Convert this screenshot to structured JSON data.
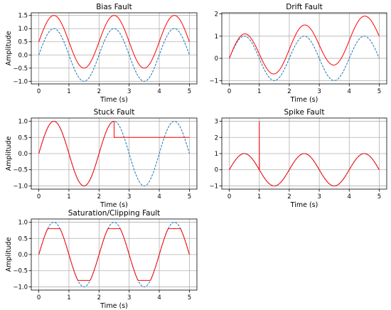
{
  "figure": {
    "background": "#ffffff",
    "clean_color": "#1f77b4",
    "fault_color": "#ff0000"
  },
  "chart_data": [
    {
      "type": "line",
      "title": "Bias Fault",
      "xlabel": "Time (s)",
      "ylabel": "Amplitude",
      "xlim": [
        -0.25,
        5.25
      ],
      "ylim": [
        -1.1,
        1.6
      ],
      "xticks": [
        0,
        1,
        2,
        3,
        4,
        5
      ],
      "xticklabels": [
        "0",
        "1",
        "2",
        "3",
        "4",
        "5"
      ],
      "yticks": [
        -1.0,
        -0.5,
        0.0,
        0.5,
        1.0,
        1.5
      ],
      "yticklabels": [
        "−1.0",
        "−0.5",
        "0.0",
        "0.5",
        "1.0",
        "1.5"
      ],
      "grid": true,
      "x": [
        0,
        0.5,
        1,
        1.5,
        2,
        2.5,
        3,
        3.5,
        4,
        4.5,
        5
      ],
      "series": [
        {
          "role": "clean",
          "style": "dashed",
          "color": "#1f77b4",
          "values": [
            0,
            1,
            0,
            -1,
            0,
            1,
            0,
            -1,
            0,
            1,
            0
          ]
        },
        {
          "role": "fault",
          "style": "solid",
          "color": "#ff0000",
          "values": [
            0.5,
            1.5,
            0.5,
            -0.5,
            0.5,
            1.5,
            0.5,
            -0.5,
            0.5,
            1.5,
            0.5
          ]
        }
      ]
    },
    {
      "type": "line",
      "title": "Drift Fault",
      "xlabel": "Time (s)",
      "ylabel": "",
      "xlim": [
        -0.25,
        5.25
      ],
      "ylim": [
        -1.15,
        2.05
      ],
      "xticks": [
        0,
        1,
        2,
        3,
        4,
        5
      ],
      "xticklabels": [
        "0",
        "1",
        "2",
        "3",
        "4",
        "5"
      ],
      "yticks": [
        -1,
        0,
        1,
        2
      ],
      "yticklabels": [
        "−1",
        "0",
        "1",
        "2"
      ],
      "grid": true,
      "x": [
        0,
        0.5,
        1,
        1.5,
        2,
        2.5,
        3,
        3.5,
        4,
        4.5,
        5
      ],
      "series": [
        {
          "role": "clean",
          "style": "dashed",
          "color": "#1f77b4",
          "values": [
            0,
            1,
            0,
            -1,
            0,
            1,
            0,
            -1,
            0,
            1,
            0
          ]
        },
        {
          "role": "fault",
          "style": "solid",
          "color": "#ff0000",
          "values": [
            0,
            1.1,
            0.2,
            -0.7,
            0.4,
            1.5,
            0.6,
            -0.3,
            0.8,
            1.9,
            1.0
          ]
        }
      ]
    },
    {
      "type": "line",
      "title": "Stuck Fault",
      "xlabel": "Time (s)",
      "ylabel": "Amplitude",
      "xlim": [
        -0.25,
        5.25
      ],
      "ylim": [
        -1.1,
        1.1
      ],
      "xticks": [
        0,
        1,
        2,
        3,
        4,
        5
      ],
      "xticklabels": [
        "0",
        "1",
        "2",
        "3",
        "4",
        "5"
      ],
      "yticks": [
        -1.0,
        -0.5,
        0.0,
        0.5,
        1.0
      ],
      "yticklabels": [
        "−1.0",
        "−0.5",
        "0.0",
        "0.5",
        "1.0"
      ],
      "grid": true,
      "x": [
        0,
        0.5,
        1,
        1.5,
        2,
        2.5,
        3,
        3.5,
        4,
        4.5,
        5
      ],
      "series": [
        {
          "role": "clean",
          "style": "dashed",
          "color": "#1f77b4",
          "values": [
            0,
            1,
            0,
            -1,
            0,
            1,
            0,
            -1,
            0,
            1,
            0
          ]
        },
        {
          "role": "fault",
          "style": "solid",
          "color": "#ff0000",
          "values": [
            0,
            1,
            0,
            -1,
            0,
            1,
            0.5,
            0.5,
            0.5,
            0.5,
            0.5
          ],
          "stuck_at": 0.5,
          "fault_start": 2.5
        }
      ]
    },
    {
      "type": "line",
      "title": "Spike Fault",
      "xlabel": "Time (s)",
      "ylabel": "",
      "xlim": [
        -0.25,
        5.25
      ],
      "ylim": [
        -1.2,
        3.2
      ],
      "xticks": [
        0,
        1,
        2,
        3,
        4,
        5
      ],
      "xticklabels": [
        "0",
        "1",
        "2",
        "3",
        "4",
        "5"
      ],
      "yticks": [
        -1,
        0,
        1,
        2,
        3
      ],
      "yticklabels": [
        "−1",
        "0",
        "1",
        "2",
        "3"
      ],
      "grid": true,
      "x": [
        0,
        0.5,
        1,
        1.5,
        2,
        2.5,
        3,
        3.5,
        4,
        4.5,
        5
      ],
      "series": [
        {
          "role": "clean",
          "style": "dashed",
          "color": "#1f77b4",
          "values": [
            0,
            1,
            0,
            -1,
            0,
            1,
            0,
            -1,
            0,
            1,
            0
          ]
        },
        {
          "role": "fault",
          "style": "solid",
          "color": "#ff0000",
          "values": [
            0,
            1,
            0,
            -1,
            0,
            1,
            0,
            -1,
            0,
            1,
            0
          ],
          "spike": {
            "x": 1.0,
            "value": 3.0
          }
        }
      ]
    },
    {
      "type": "line",
      "title": "Saturation/Clipping Fault",
      "xlabel": "Time (s)",
      "ylabel": "Amplitude",
      "xlim": [
        -0.25,
        5.25
      ],
      "ylim": [
        -1.1,
        1.1
      ],
      "xticks": [
        0,
        1,
        2,
        3,
        4,
        5
      ],
      "xticklabels": [
        "0",
        "1",
        "2",
        "3",
        "4",
        "5"
      ],
      "yticks": [
        -1.0,
        -0.5,
        0.0,
        0.5,
        1.0
      ],
      "yticklabels": [
        "−1.0",
        "−0.5",
        "0.0",
        "0.5",
        "1.0"
      ],
      "grid": true,
      "x": [
        0,
        0.5,
        1,
        1.5,
        2,
        2.5,
        3,
        3.5,
        4,
        4.5,
        5
      ],
      "series": [
        {
          "role": "clean",
          "style": "dashed",
          "color": "#1f77b4",
          "values": [
            0,
            1,
            0,
            -1,
            0,
            1,
            0,
            -1,
            0,
            1,
            0
          ]
        },
        {
          "role": "fault",
          "style": "solid",
          "color": "#ff0000",
          "values": [
            0,
            0.8,
            0,
            -0.8,
            0,
            0.8,
            0,
            -0.8,
            0,
            0.8,
            0
          ],
          "clip": 0.8
        }
      ]
    }
  ]
}
